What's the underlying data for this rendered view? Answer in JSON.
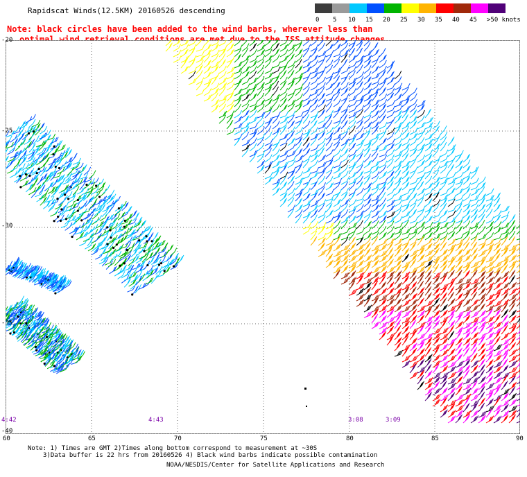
{
  "title": "Rapidscat Winds(12.5KM) 20160526 descending",
  "note_line1": "Note: black circles have been added to the wind barbs, wherever less than",
  "note_line2": "optimal wind retrieval conditions are met due to the ISS attitude changes.",
  "legend": {
    "labels": [
      "0",
      "5",
      "10",
      "15",
      "20",
      "25",
      "30",
      "35",
      "40",
      "45",
      ">50 knots"
    ],
    "colors": [
      "#3c3c3c",
      "#9a9a9a",
      "#00c8ff",
      "#0050ff",
      "#00b400",
      "#ffff00",
      "#ffb400",
      "#ff0000",
      "#a0280a",
      "#ff00ff",
      "#500078"
    ]
  },
  "axes": {
    "x_ticks": [
      "60",
      "65",
      "70",
      "75",
      "80",
      "85",
      "90"
    ],
    "y_ticks": [
      "-20",
      "-25",
      "-30",
      "-35",
      "-40"
    ]
  },
  "time_labels": [
    "4:42",
    "4:43",
    "3:08",
    "3:09"
  ],
  "footnote_line1": "Note: 1) Times are GMT 2)Times along bottom correspond to measurement at ~30S",
  "footnote_line2": "3)Data buffer is 22 hrs from 20160526 4) Black wind barbs indicate possible contamination",
  "credit": "NOAA/NESDIS/Center for Satellite Applications and Research",
  "swaths": [
    "west-swath",
    "east-swath"
  ]
}
